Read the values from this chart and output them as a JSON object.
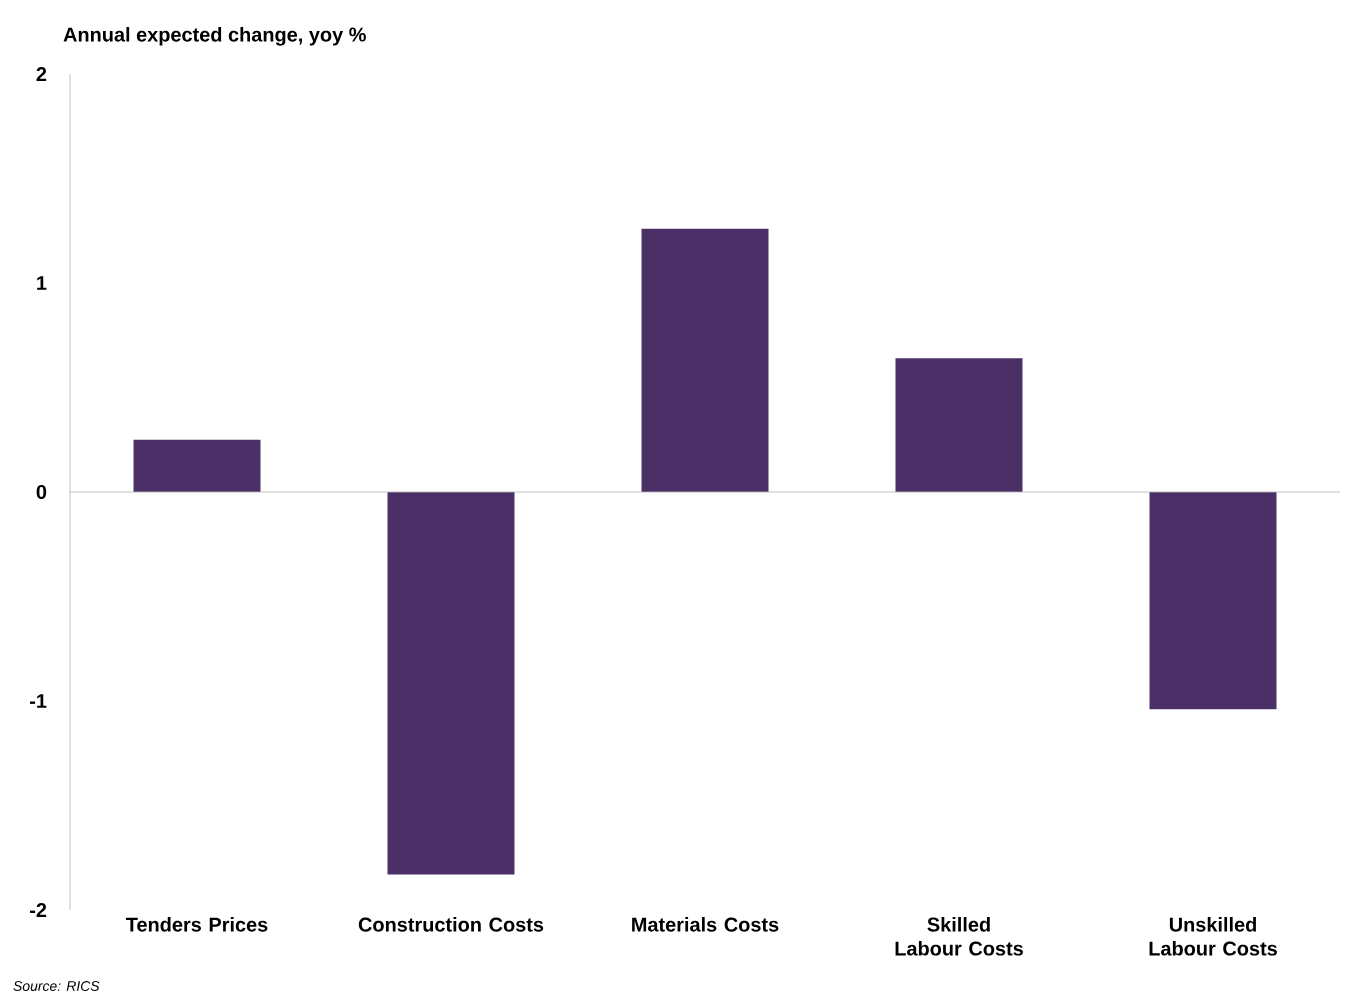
{
  "chart_data": {
    "type": "bar",
    "ylabel": "Annual expected change, yoy %",
    "categories": [
      "Tenders Prices",
      "Construction Costs",
      "Materials Costs",
      "Skilled Labour Costs",
      "Unskilled Labour Costs"
    ],
    "values": [
      0.25,
      -1.83,
      1.26,
      0.64,
      -1.04
    ],
    "color": "#4b3068",
    "ylim": [
      -2,
      2
    ],
    "yticks": [
      -2,
      -1,
      0,
      1,
      2
    ],
    "annotations": [
      "Source: RICS"
    ]
  }
}
